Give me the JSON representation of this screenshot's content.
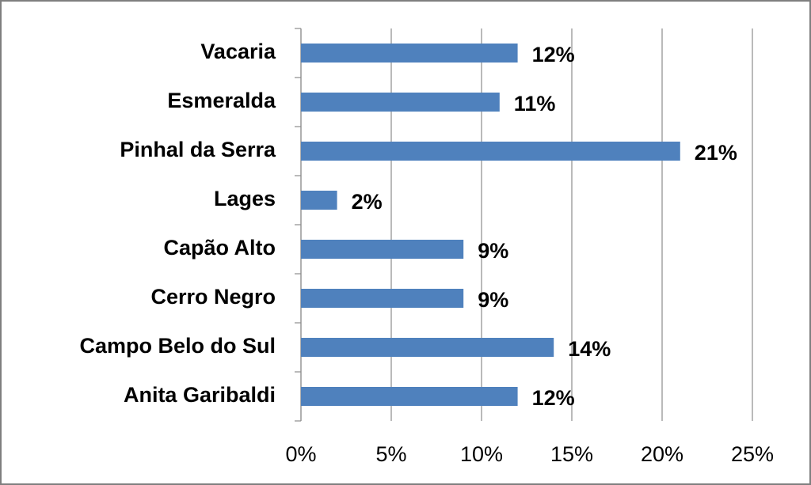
{
  "chart_data": {
    "type": "bar",
    "orientation": "horizontal",
    "categories": [
      "Vacaria",
      "Esmeralda",
      "Pinhal da Serra",
      "Lages",
      "Capão Alto",
      "Cerro Negro",
      "Campo Belo do Sul",
      "Anita Garibaldi"
    ],
    "values": [
      12,
      11,
      21,
      2,
      9,
      9,
      14,
      12
    ],
    "value_labels": [
      "12%",
      "11%",
      "21%",
      "2%",
      "9%",
      "9%",
      "14%",
      "12%"
    ],
    "color": "#4f81bd",
    "xlim": [
      0,
      25
    ],
    "xticks": [
      {
        "value": 0,
        "label": "0%"
      },
      {
        "value": 5,
        "label": "5%"
      },
      {
        "value": 10,
        "label": "10%"
      },
      {
        "value": 15,
        "label": "15%"
      },
      {
        "value": 20,
        "label": "20%"
      },
      {
        "value": 25,
        "label": "25%"
      }
    ],
    "grid": true
  }
}
